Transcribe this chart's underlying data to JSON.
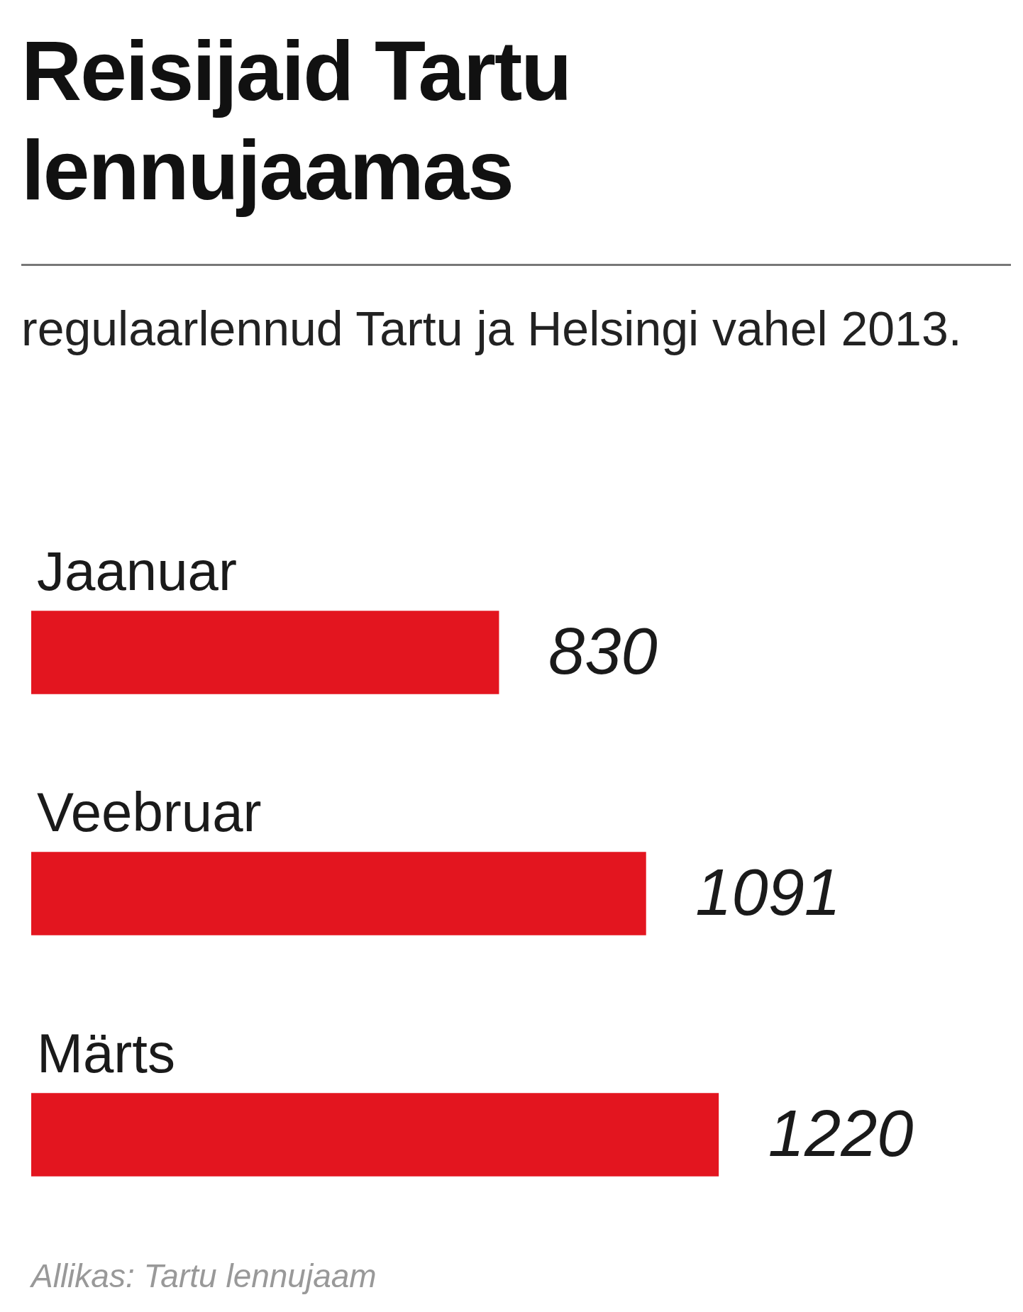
{
  "chart_data": {
    "type": "bar",
    "orientation": "horizontal",
    "title": "Reisijaid Tartu lennujaamas",
    "subtitle": "regulaarlennud Tartu ja Helsingi vahel 2013.",
    "categories": [
      "Jaanuar",
      "Veebruar",
      "Märts"
    ],
    "values": [
      830,
      1091,
      1220
    ],
    "color": "#e3151f",
    "data_labels": true,
    "legend": false,
    "annotations": [
      "Allikas: Tartu lennujaam"
    ]
  }
}
